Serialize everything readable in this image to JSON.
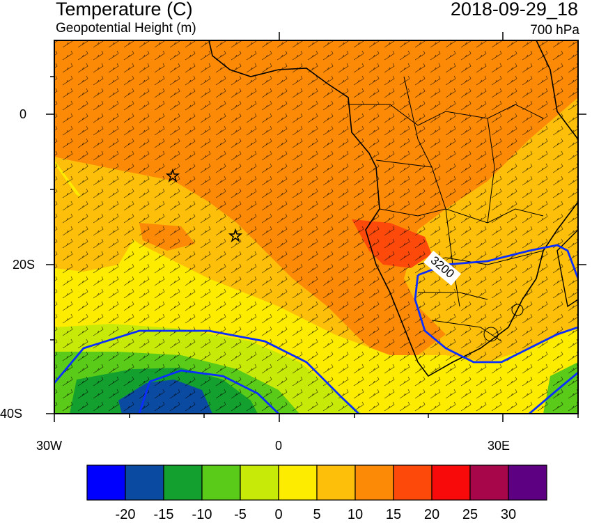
{
  "header": {
    "title": "Temperature (C)",
    "subtitle": "Geopotential Height (m)",
    "valid_time": "2018-09-29_18",
    "level": "700 hPa"
  },
  "axes": {
    "y_ticks": [
      "0",
      "20S",
      "40S"
    ],
    "x_ticks": [
      "30W",
      "0",
      "30E"
    ]
  },
  "contour_label": "3200",
  "colorbar": {
    "labels": [
      "-20",
      "-15",
      "-10",
      "-5",
      "0",
      "5",
      "10",
      "15",
      "20",
      "25",
      "30"
    ],
    "colors": [
      "#0000ff",
      "#0a4aa0",
      "#13a02e",
      "#5acb18",
      "#c8ea08",
      "#fdeb00",
      "#fdbf0a",
      "#fd8a07",
      "#fd4a0a",
      "#f80a0a",
      "#a8064a",
      "#5e0082"
    ]
  },
  "field_colors": {
    "land_outline": "#000000",
    "height_contour": "#0a2eff",
    "wind_barb": "#000000"
  }
}
